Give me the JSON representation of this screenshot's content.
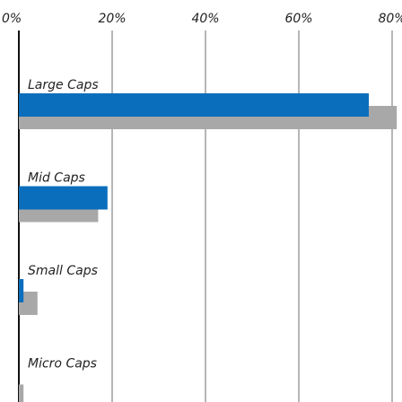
{
  "chart_data": {
    "type": "bar",
    "orientation": "horizontal",
    "categories": [
      "Large Caps",
      "Mid Caps",
      "Small Caps",
      "Micro Caps"
    ],
    "series": [
      {
        "values": [
          75,
          19,
          1,
          0
        ],
        "color": "#0a6ebd"
      },
      {
        "values": [
          81,
          17,
          4,
          1
        ],
        "color": "#a8a8a8"
      }
    ],
    "xticks": [
      "0%",
      "20%",
      "40%",
      "60%",
      "80%"
    ],
    "xlim": [
      0,
      80
    ],
    "grid": true,
    "legend": "none",
    "title": "",
    "xlabel": "",
    "ylabel": ""
  }
}
